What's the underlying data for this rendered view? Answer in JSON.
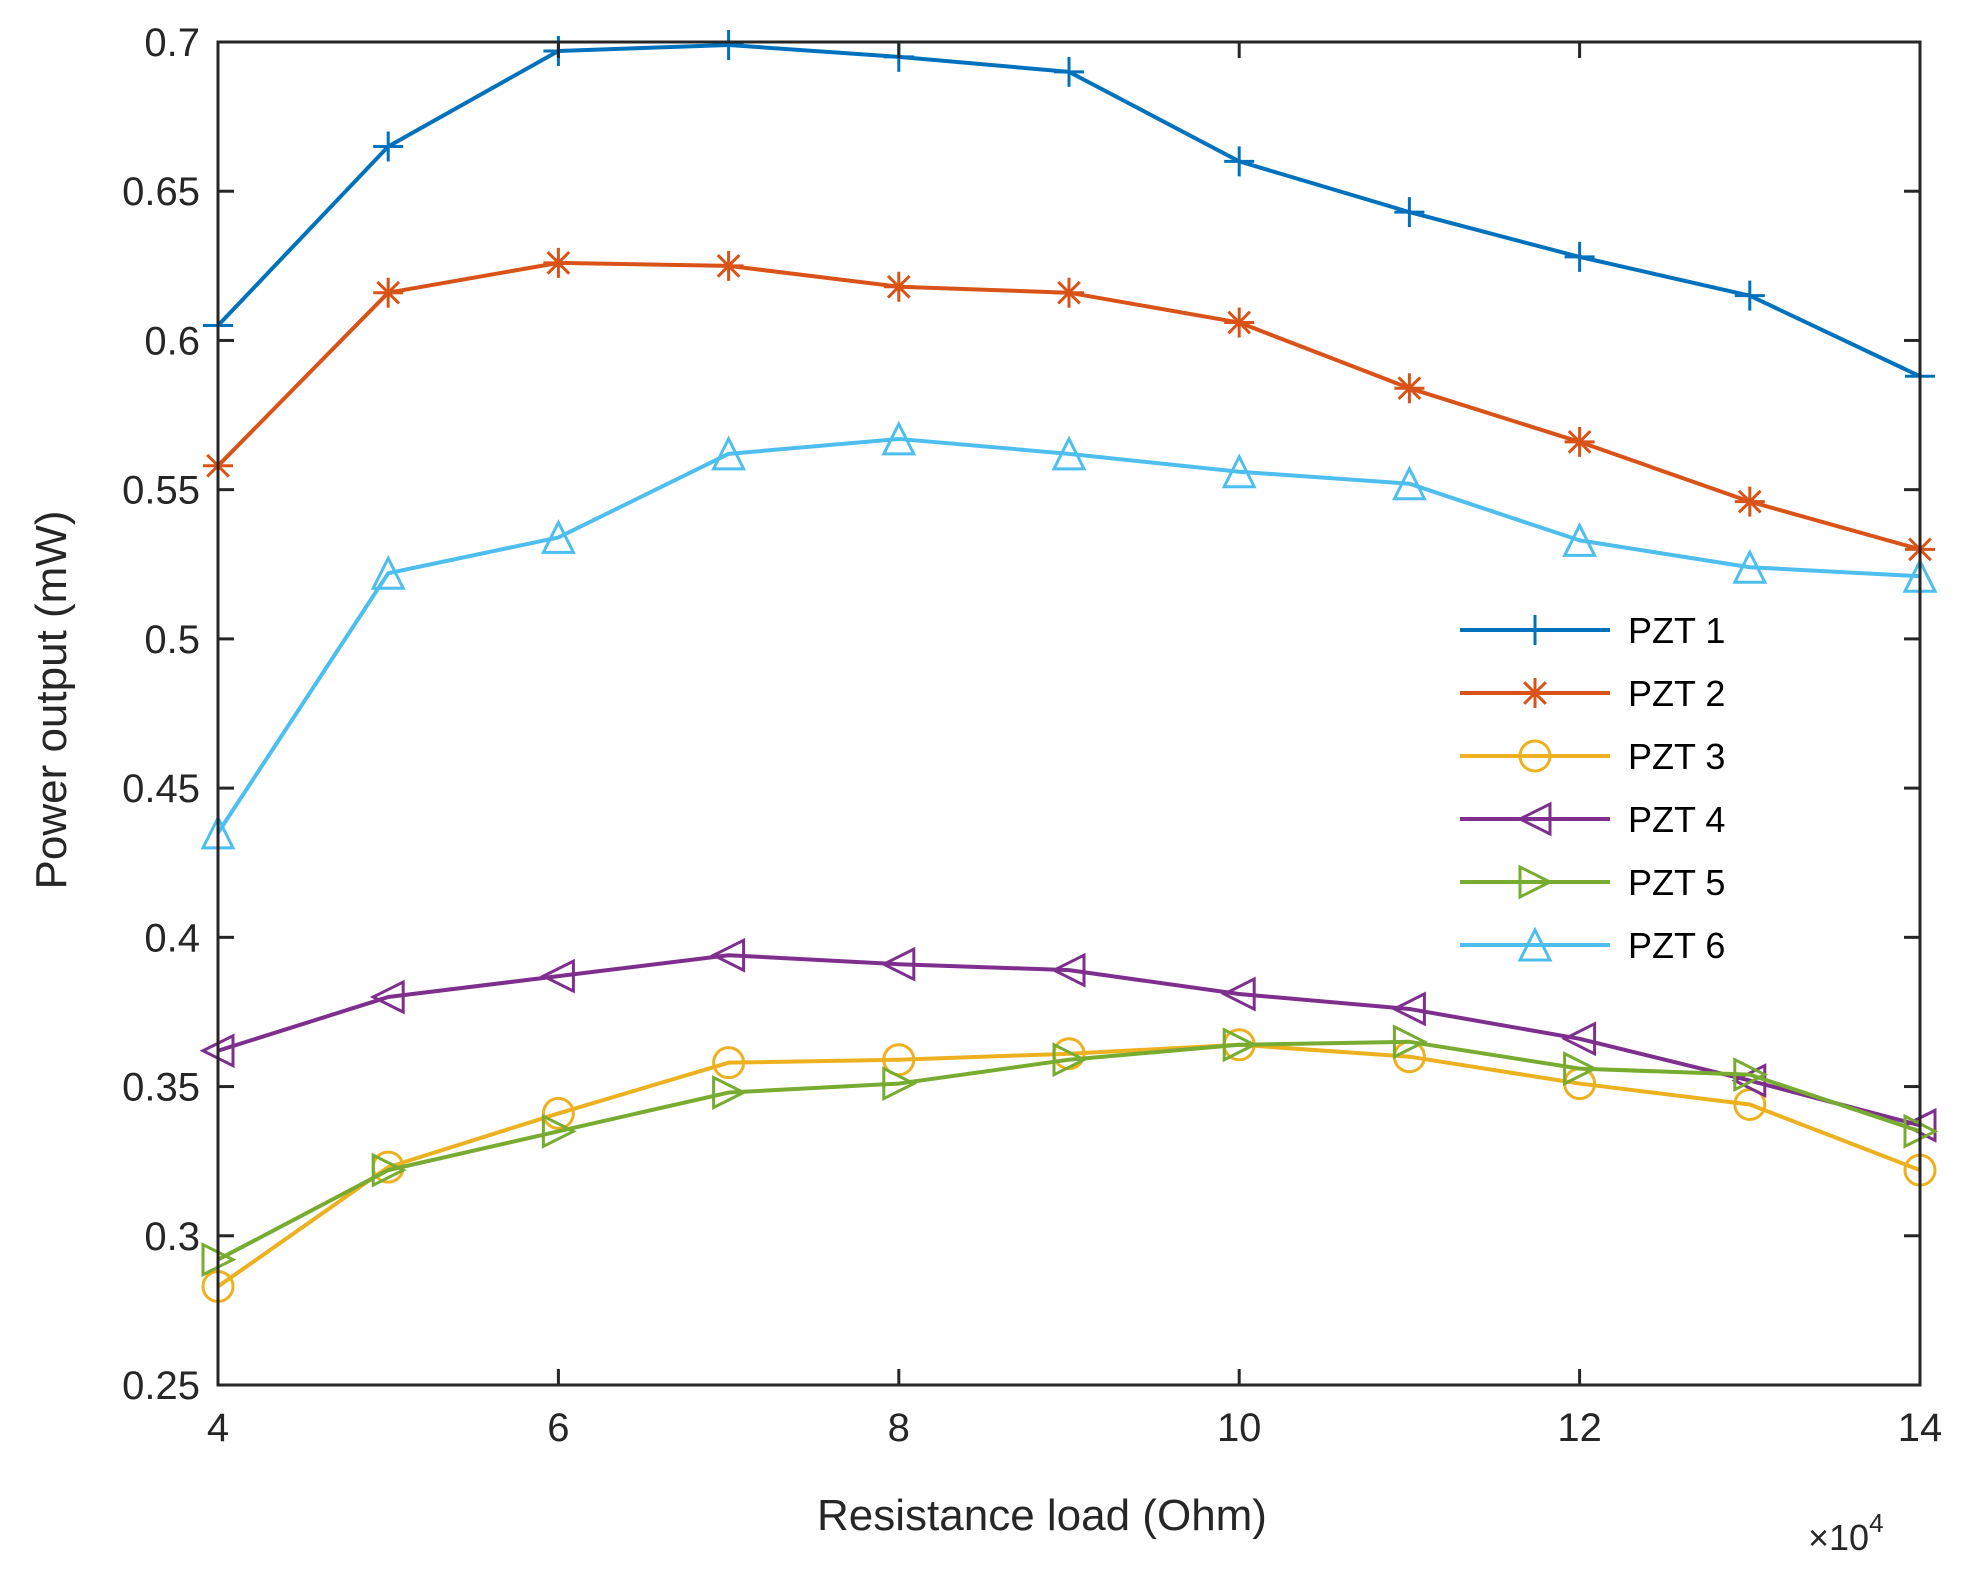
{
  "chart_data": {
    "type": "line",
    "title": "",
    "xlabel": "Resistance load (Ohm)",
    "ylabel": "Power output (mW)",
    "x_multiplier_base": "×10",
    "x_multiplier_exp": "4",
    "xlim": [
      4,
      14
    ],
    "ylim": [
      0.25,
      0.7
    ],
    "xticks": [
      4,
      6,
      8,
      10,
      12,
      14
    ],
    "xtick_labels": [
      "4",
      "6",
      "8",
      "10",
      "12",
      "14"
    ],
    "yticks": [
      0.25,
      0.3,
      0.35,
      0.4,
      0.45,
      0.5,
      0.55,
      0.6,
      0.65,
      0.7
    ],
    "ytick_labels": [
      "0.25",
      "0.3",
      "0.35",
      "0.4",
      "0.45",
      "0.5",
      "0.55",
      "0.6",
      "0.65",
      "0.7"
    ],
    "grid": false,
    "legend_position": "right",
    "x": [
      4,
      5,
      6,
      7,
      8,
      9,
      10,
      11,
      12,
      13,
      14
    ],
    "series": [
      {
        "name": "PZT 1",
        "color": "#0072BD",
        "marker": "plus",
        "values": [
          0.605,
          0.665,
          0.697,
          0.699,
          0.695,
          0.69,
          0.66,
          0.643,
          0.628,
          0.615,
          0.588
        ]
      },
      {
        "name": "PZT 2",
        "color": "#D95319",
        "marker": "asterisk",
        "values": [
          0.558,
          0.616,
          0.626,
          0.625,
          0.618,
          0.616,
          0.606,
          0.584,
          0.566,
          0.546,
          0.53
        ]
      },
      {
        "name": "PZT 3",
        "color": "#EDB120",
        "marker": "circle",
        "values": [
          0.283,
          0.323,
          0.341,
          0.358,
          0.359,
          0.361,
          0.364,
          0.36,
          0.351,
          0.344,
          0.322
        ]
      },
      {
        "name": "PZT 4",
        "color": "#7E2F8E",
        "marker": "triangle-left",
        "values": [
          0.362,
          0.38,
          0.387,
          0.394,
          0.391,
          0.389,
          0.381,
          0.376,
          0.366,
          0.352,
          0.337
        ]
      },
      {
        "name": "PZT 5",
        "color": "#77AC30",
        "marker": "triangle-right",
        "values": [
          0.292,
          0.322,
          0.335,
          0.348,
          0.351,
          0.359,
          0.364,
          0.365,
          0.356,
          0.354,
          0.335
        ]
      },
      {
        "name": "PZT 6",
        "color": "#4DBEEE",
        "marker": "triangle-up",
        "values": [
          0.435,
          0.522,
          0.534,
          0.562,
          0.567,
          0.562,
          0.556,
          0.552,
          0.533,
          0.524,
          0.521
        ]
      }
    ]
  }
}
